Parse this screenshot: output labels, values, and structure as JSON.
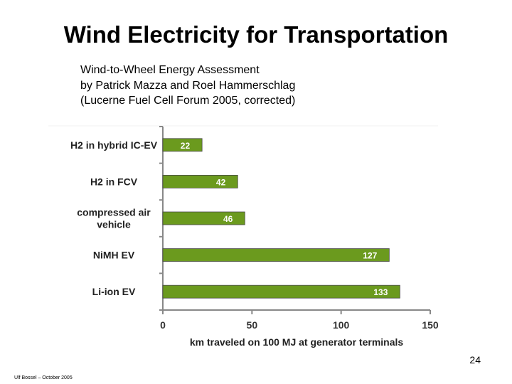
{
  "slide": {
    "title": "Wind Electricity for Transportation",
    "subtitle_lines": [
      "Wind-to-Wheel Energy Assessment",
      "by Patrick Mazza and Roel Hammerschlag",
      "(Lucerne Fuel Cell Forum 2005, corrected)"
    ],
    "page_number": "24",
    "footer": "Ulf Bossel – October 2005"
  },
  "chart_data": {
    "type": "bar",
    "orientation": "horizontal",
    "categories": [
      "H2 in hybrid IC-EV",
      "H2 in FCV",
      "compressed air vehicle",
      "NiMH EV",
      "Li-ion EV"
    ],
    "values": [
      22,
      42,
      46,
      127,
      133
    ],
    "xlabel": "km traveled on 100 MJ at generator terminals",
    "xlim": [
      0,
      150
    ],
    "xticks": [
      0,
      50,
      100,
      150
    ],
    "bar_color": "#6b9a1e",
    "label_color": "#ffffff",
    "grid": false,
    "legend": "none"
  }
}
